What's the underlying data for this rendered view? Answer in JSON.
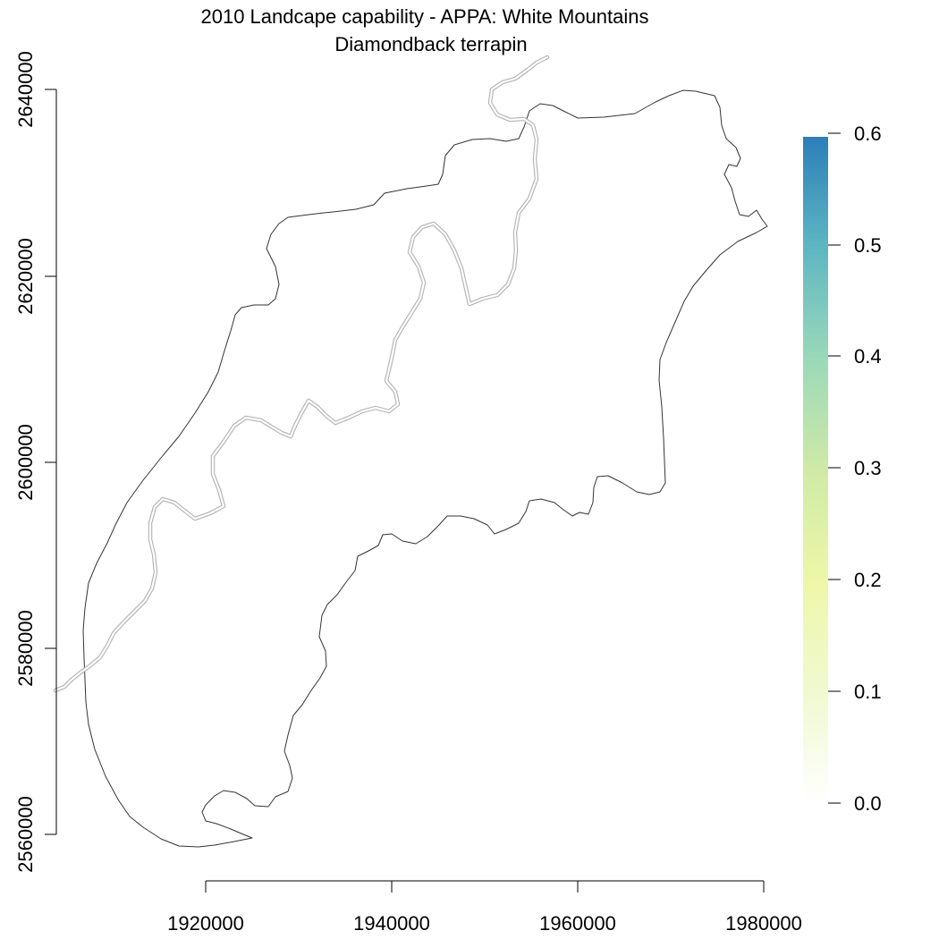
{
  "title": {
    "line1": "2010 Landcape capability - APPA: White Mountains",
    "line2": "Diamondback terrapin"
  },
  "map": {
    "x_axis": {
      "ticks": [
        "1920000",
        "1940000",
        "1960000",
        "1980000"
      ]
    },
    "y_axis": {
      "ticks": [
        "2560000",
        "2580000",
        "2600000",
        "2620000",
        "2640000"
      ]
    },
    "layers": [
      "region-boundary",
      "appalachian-trail"
    ],
    "trail_color": "#b4b4b4",
    "boundary_color": "#333333"
  },
  "legend": {
    "ticks": [
      "0.0",
      "0.1",
      "0.2",
      "0.3",
      "0.4",
      "0.5",
      "0.6"
    ],
    "range": [
      0.0,
      0.6
    ],
    "colors": [
      "#ffffff",
      "#f0f9d0",
      "#eef7a8",
      "#cfeaa6",
      "#9ad9b9",
      "#5fb6c2",
      "#2c7fb8"
    ]
  }
}
